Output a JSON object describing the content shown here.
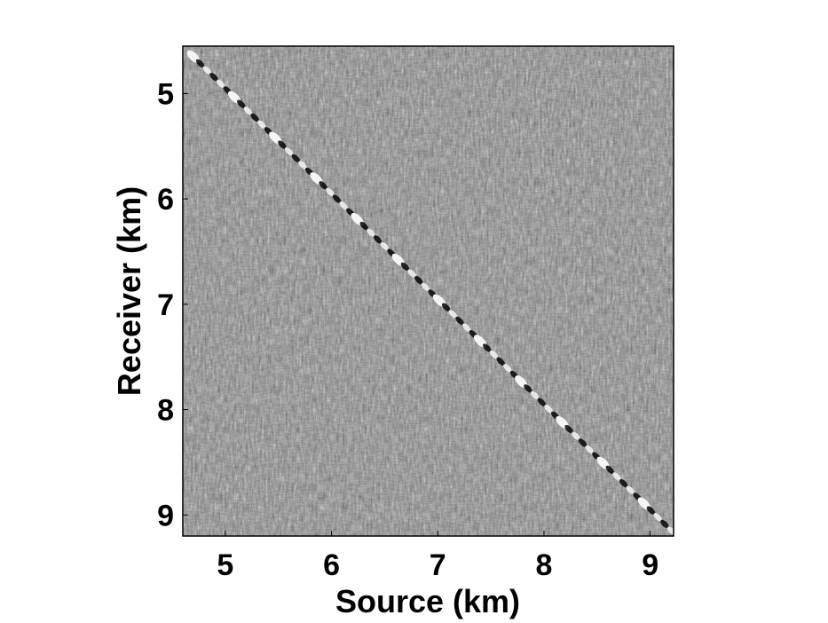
{
  "chart_data": {
    "type": "heatmap",
    "title": "",
    "xlabel": "Source (km)",
    "ylabel": "Receiver (km)",
    "xlim": [
      4.6,
      9.22
    ],
    "ylim": [
      4.55,
      9.2
    ],
    "y_direction": "down",
    "xticks": [
      5,
      6,
      7,
      8,
      9
    ],
    "yticks": [
      5,
      6,
      7,
      8,
      9
    ],
    "xtick_labels": [
      "5",
      "6",
      "7",
      "8",
      "9"
    ],
    "ytick_labels": [
      "5",
      "6",
      "7",
      "8",
      "9"
    ],
    "colormap": "gray",
    "grid": false,
    "legend": "none",
    "features": {
      "diagonal_event": {
        "description": "strong high-amplitude event along source = receiver",
        "from": [
          4.7,
          4.65
        ],
        "to": [
          9.2,
          9.15
        ]
      }
    }
  },
  "colors": {
    "background": "#ffffff",
    "panel_base": "#3a3a3a",
    "axis": "#000000",
    "text": "#000000"
  }
}
